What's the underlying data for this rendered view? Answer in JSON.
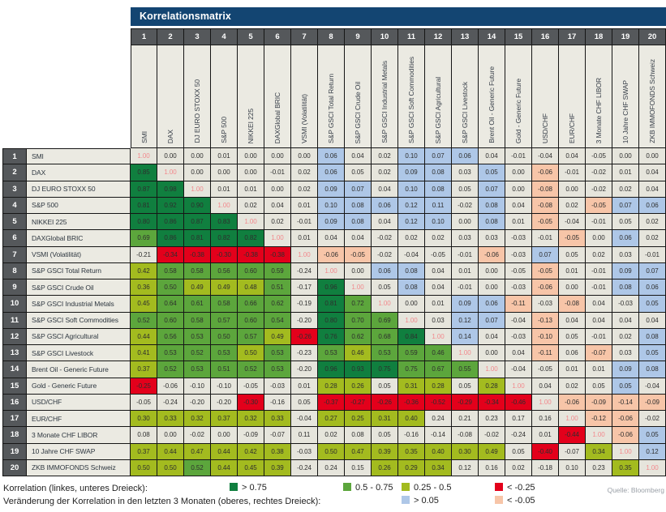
{
  "title": "Korrelationsmatrix",
  "source": "Quelle: Bloomberg",
  "colors": {
    "dark_green": "#107F3F",
    "mid_green": "#5CA63C",
    "yellow_green": "#A3BB1F",
    "red": "#E3001B",
    "blue": "#AEC7E7",
    "salmon": "#F7C5A8",
    "plain": "#E6E5DC",
    "label_bg": "#EBEAE2",
    "header_navy": "#134572",
    "header_gray": "#55585B",
    "diag_text": "#F2898D"
  },
  "legend": {
    "row1_label": "Korrelation (linkes, unteres Dreieck):",
    "row2_label": "Veränderung der Korrelation in den letzten 3 Monaten (oberes, rechtes Dreieck):",
    "row1_items": [
      {
        "color": "dark_green",
        "text": "> 0.75"
      },
      {
        "color": "mid_green",
        "text": "0.5 - 0.75"
      },
      {
        "color": "yellow_green",
        "text": "0.25 - 0.5"
      },
      {
        "color": "red",
        "text": "< -0.25"
      }
    ],
    "row2_items": [
      {
        "color": "blue",
        "text": "> 0.05"
      },
      {
        "color": "salmon",
        "text": "< -0.05"
      }
    ]
  },
  "chart_data": {
    "type": "heatmap",
    "title": "Korrelationsmatrix",
    "lower_triangle": "Korrelation",
    "upper_triangle": "Veränderung der Korrelation in den letzten 3 Monaten",
    "categories": [
      "SMI",
      "DAX",
      "DJ EURO STOXX 50",
      "S&P 500",
      "NIKKEI 225",
      "DAXGlobal BRIC",
      "VSMI (Volatilität)",
      "S&P GSCI Total Return",
      "S&P GSCI Crude Oil",
      "S&P GSCI Industrial Metals",
      "S&P GSCI Soft Commodities",
      "S&P GSCI Agricultural",
      "S&P GSCI Livestock",
      "Brent Oil - Generic Future",
      "Gold - Generic Future",
      "USD/CHF",
      "EUR/CHF",
      "3 Monate CHF LIBOR",
      "10 Jahre CHF SWAP",
      "ZKB IMMOFONDS Schweiz"
    ],
    "matrix": [
      [
        "1.00",
        "0.00",
        "0.00",
        "0.01",
        "0.00",
        "0.00",
        "0.00",
        "0.06",
        "0.04",
        "0.02",
        "0.10",
        "0.07",
        "0.06",
        "0.04",
        "-0.01",
        "-0.04",
        "0.04",
        "-0.05",
        "0.00",
        "0.00"
      ],
      [
        "0.85",
        "1.00",
        "0.00",
        "0.00",
        "0.00",
        "-0.01",
        "0.02",
        "0.06",
        "0.05",
        "0.02",
        "0.09",
        "0.08",
        "0.03",
        "0.05",
        "0.00",
        "-0.06",
        "-0.01",
        "-0.02",
        "0.01",
        "0.04"
      ],
      [
        "0.87",
        "0.98",
        "1.00",
        "0.01",
        "0.01",
        "0.00",
        "0.02",
        "0.09",
        "0.07",
        "0.04",
        "0.10",
        "0.08",
        "0.05",
        "0.07",
        "0.00",
        "-0.08",
        "0.00",
        "-0.02",
        "0.02",
        "0.04"
      ],
      [
        "0.81",
        "0.92",
        "0.90",
        "1.00",
        "0.02",
        "0.04",
        "0.01",
        "0.10",
        "0.08",
        "0.06",
        "0.12",
        "0.11",
        "-0.02",
        "0.08",
        "0.04",
        "-0.08",
        "0.02",
        "-0.05",
        "0.07",
        "0.06"
      ],
      [
        "0.80",
        "0.86",
        "0.87",
        "0.83",
        "1.00",
        "0.02",
        "-0.01",
        "0.09",
        "0.08",
        "0.04",
        "0.12",
        "0.10",
        "0.00",
        "0.08",
        "0.01",
        "-0.05",
        "-0.04",
        "-0.01",
        "0.05",
        "0.02"
      ],
      [
        "0.69",
        "0.86",
        "0.81",
        "0.82",
        "0.82",
        "1.00",
        "0.01",
        "0.04",
        "0.04",
        "-0.02",
        "0.02",
        "0.02",
        "0.03",
        "0.03",
        "-0.03",
        "-0.01",
        "-0.05",
        "0.00",
        "0.06",
        "0.02"
      ],
      [
        "-0.21",
        "-0.34",
        "-0.38",
        "-0.30",
        "-0.38",
        "-0.38",
        "1.00",
        "-0.06",
        "-0.05",
        "-0.02",
        "-0.04",
        "-0.05",
        "-0.01",
        "-0.06",
        "-0.03",
        "0.07",
        "0.05",
        "0.02",
        "0.03",
        "-0.01"
      ],
      [
        "0.42",
        "0.58",
        "0.58",
        "0.56",
        "0.60",
        "0.59",
        "-0.24",
        "1.00",
        "0.00",
        "0.06",
        "0.08",
        "0.04",
        "0.01",
        "0.00",
        "-0.05",
        "-0.05",
        "0.01",
        "-0.01",
        "0.09",
        "0.07"
      ],
      [
        "0.36",
        "0.50",
        "0.49",
        "0.49",
        "0.48",
        "0.51",
        "-0.17",
        "0.96",
        "1.00",
        "0.05",
        "0.08",
        "0.04",
        "-0.01",
        "0.00",
        "-0.03",
        "-0.06",
        "0.00",
        "-0.01",
        "0.08",
        "0.06"
      ],
      [
        "0.45",
        "0.64",
        "0.61",
        "0.58",
        "0.66",
        "0.62",
        "-0.19",
        "0.81",
        "0.72",
        "1.00",
        "0.00",
        "0.01",
        "0.09",
        "0.06",
        "-0.11",
        "-0.03",
        "-0.08",
        "0.04",
        "-0.03",
        "0.05"
      ],
      [
        "0.52",
        "0.60",
        "0.58",
        "0.57",
        "0.60",
        "0.54",
        "-0.20",
        "0.80",
        "0.70",
        "0.69",
        "1.00",
        "0.03",
        "0.12",
        "0.07",
        "-0.04",
        "-0.13",
        "0.04",
        "0.04",
        "0.04",
        "0.04"
      ],
      [
        "0.44",
        "0.56",
        "0.53",
        "0.50",
        "0.57",
        "0.49",
        "-0.26",
        "0.76",
        "0.62",
        "0.68",
        "0.84",
        "1.00",
        "0.14",
        "0.04",
        "-0.03",
        "-0.10",
        "0.05",
        "-0.01",
        "0.02",
        "0.08"
      ],
      [
        "0.41",
        "0.53",
        "0.52",
        "0.53",
        "0.50",
        "0.53",
        "-0.23",
        "0.53",
        "0.46",
        "0.53",
        "0.59",
        "0.46",
        "1.00",
        "0.00",
        "0.04",
        "-0.11",
        "0.06",
        "-0.07",
        "0.03",
        "0.05"
      ],
      [
        "0.37",
        "0.52",
        "0.53",
        "0.51",
        "0.52",
        "0.53",
        "-0.20",
        "0.96",
        "0.93",
        "0.75",
        "0.75",
        "0.67",
        "0.55",
        "1.00",
        "-0.04",
        "-0.05",
        "0.01",
        "0.01",
        "0.09",
        "0.08"
      ],
      [
        "-0.25",
        "-0.06",
        "-0.10",
        "-0.10",
        "-0.05",
        "-0.03",
        "0.01",
        "0.28",
        "0.26",
        "0.05",
        "0.31",
        "0.28",
        "0.05",
        "0.28",
        "1.00",
        "0.04",
        "0.02",
        "0.05",
        "0.05",
        "-0.04"
      ],
      [
        "-0.05",
        "-0.24",
        "-0.20",
        "-0.20",
        "-0.30",
        "-0.16",
        "0.05",
        "-0.37",
        "-0.27",
        "-0.26",
        "-0.36",
        "-0.52",
        "-0.29",
        "-0.34",
        "-0.46",
        "1.00",
        "-0.06",
        "-0.09",
        "-0.14",
        "-0.09"
      ],
      [
        "0.30",
        "0.33",
        "0.32",
        "0.37",
        "0.32",
        "0.33",
        "-0.04",
        "0.27",
        "0.25",
        "0.31",
        "0.40",
        "0.24",
        "0.21",
        "0.23",
        "0.17",
        "0.16",
        "1.00",
        "-0.12",
        "-0.06",
        "-0.02"
      ],
      [
        "0.08",
        "0.00",
        "-0.02",
        "0.00",
        "-0.09",
        "-0.07",
        "0.11",
        "0.02",
        "0.08",
        "0.05",
        "-0.16",
        "-0.14",
        "-0.08",
        "-0.02",
        "-0.24",
        "0.01",
        "-0.44",
        "1.00",
        "-0.06",
        "0.05"
      ],
      [
        "0.37",
        "0.44",
        "0.47",
        "0.44",
        "0.42",
        "0.38",
        "-0.03",
        "0.50",
        "0.47",
        "0.39",
        "0.35",
        "0.40",
        "0.30",
        "0.49",
        "0.05",
        "-0.40",
        "-0.07",
        "0.34",
        "1.00",
        "0.12"
      ],
      [
        "0.50",
        "0.50",
        "0.52",
        "0.44",
        "0.45",
        "0.39",
        "-0.24",
        "0.24",
        "0.15",
        "0.26",
        "0.29",
        "0.34",
        "0.12",
        "0.16",
        "0.02",
        "-0.18",
        "0.10",
        "0.23",
        "0.35",
        "1.00"
      ]
    ],
    "legend_thresholds": {
      "correlation": {
        "dark_green": "> 0.75",
        "mid_green": "0.5 - 0.75",
        "yellow_green": "0.25 - 0.5",
        "red": "< -0.25"
      },
      "change_3m": {
        "blue": "> 0.05",
        "salmon": "< -0.05"
      }
    },
    "color_exceptions": {
      "blue": [
        [
          2,
          14
        ],
        [
          10,
          20
        ],
        [
          13,
          20
        ],
        [
          15,
          19
        ],
        [
          18,
          20
        ]
      ],
      "salmon": [
        [
          4,
          18
        ],
        [
          5,
          16
        ],
        [
          6,
          17
        ],
        [
          7,
          9
        ],
        [
          8,
          16
        ]
      ],
      "plain": [
        [
          13,
          17
        ]
      ],
      "mid_green": [
        [
          9,
          2
        ],
        [
          12,
          4
        ],
        [
          13,
          12
        ]
      ],
      "dark_green": [
        [
          14,
          10
        ]
      ]
    }
  }
}
